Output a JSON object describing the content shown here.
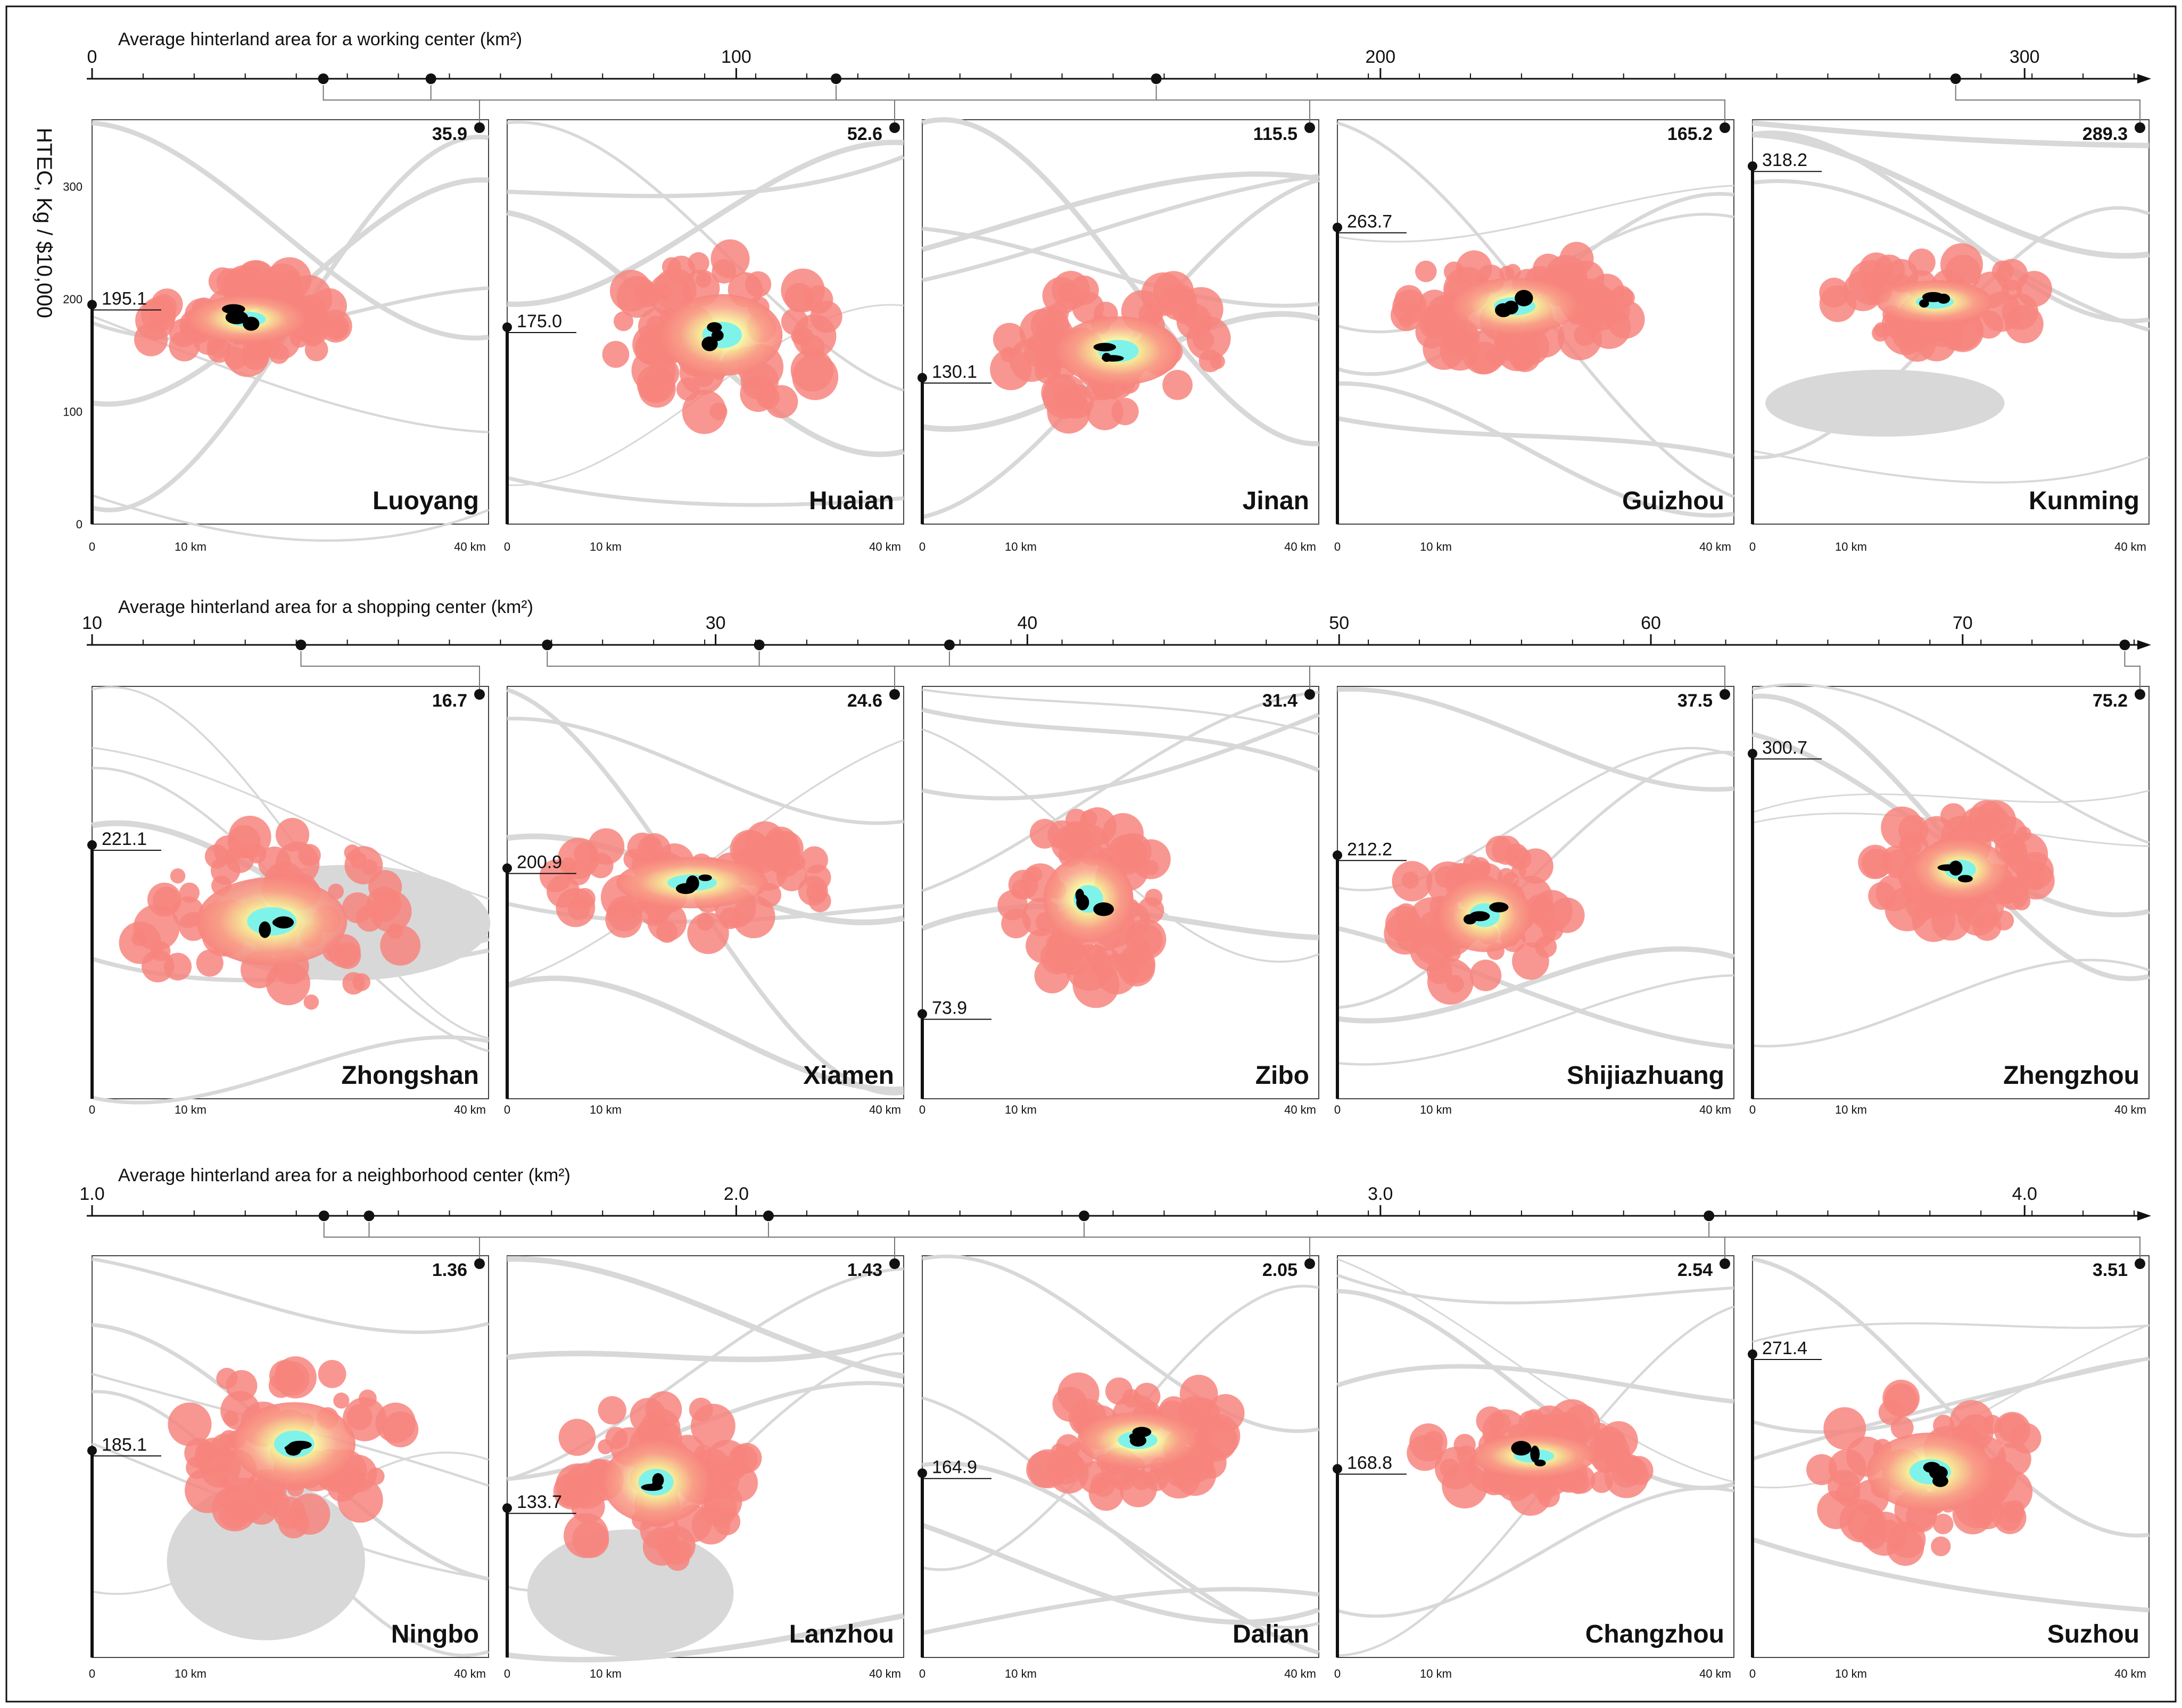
{
  "figure": {
    "ylabel": "HTEC, Kg / $10,000",
    "y_ticks": [
      "0",
      "100",
      "200",
      "300"
    ],
    "map_scale": {
      "start": "0",
      "mid": "10 km",
      "end": "40 km"
    },
    "colors": {
      "heat_low": "#f7857e",
      "heat_mid": "#f6f49a",
      "heat_high": "#7ff3ea",
      "core": "#000000",
      "base_map": "#d8d8d8",
      "line": "#111111"
    }
  },
  "rows": [
    {
      "axis_title": "Average hinterland area for a working center (km²)",
      "axis_ticks": [
        "0",
        "100",
        "200",
        "300"
      ],
      "tick_values": [
        0,
        100,
        200,
        300
      ],
      "axis_range": [
        0,
        317
      ],
      "panels": [
        {
          "city": "Luoyang",
          "hinterland": "35.9",
          "htec": "195.1",
          "htec_value": 195.1,
          "hinterland_value": 35.9
        },
        {
          "city": "Huaian",
          "hinterland": "52.6",
          "htec": "175.0",
          "htec_value": 175.0,
          "hinterland_value": 52.6
        },
        {
          "city": "Jinan",
          "hinterland": "115.5",
          "htec": "130.1",
          "htec_value": 130.1,
          "hinterland_value": 115.5
        },
        {
          "city": "Guizhou",
          "hinterland": "165.2",
          "htec": "263.7",
          "htec_value": 263.7,
          "hinterland_value": 165.2
        },
        {
          "city": "Kunming",
          "hinterland": "289.3",
          "htec": "318.2",
          "htec_value": 318.2,
          "hinterland_value": 289.3
        }
      ]
    },
    {
      "axis_title": "Average hinterland area for a shopping center (km²)",
      "axis_ticks": [
        "10",
        "30",
        "40",
        "50",
        "60",
        "70"
      ],
      "tick_values": [
        10,
        30,
        40,
        50,
        60,
        70
      ],
      "axis_range": [
        10,
        75.5
      ],
      "panels": [
        {
          "city": "Zhongshan",
          "hinterland": "16.7",
          "htec": "221.1",
          "htec_value": 221.1,
          "hinterland_value": 16.7
        },
        {
          "city": "Xiamen",
          "hinterland": "24.6",
          "htec": "200.9",
          "htec_value": 200.9,
          "hinterland_value": 24.6
        },
        {
          "city": "Zibo",
          "hinterland": "31.4",
          "htec": "73.9",
          "htec_value": 73.9,
          "hinterland_value": 31.4
        },
        {
          "city": "Shijiazhuang",
          "hinterland": "37.5",
          "htec": "212.2",
          "htec_value": 212.2,
          "hinterland_value": 37.5
        },
        {
          "city": "Zhengzhou",
          "hinterland": "75.2",
          "htec": "300.7",
          "htec_value": 300.7,
          "hinterland_value": 75.2
        }
      ]
    },
    {
      "axis_title": "Average hinterland area for a neighborhood center (km²)",
      "axis_ticks": [
        "1.0",
        "2.0",
        "3.0",
        "4.0"
      ],
      "tick_values": [
        1.0,
        2.0,
        3.0,
        4.0
      ],
      "axis_range": [
        1.0,
        4.17
      ],
      "panels": [
        {
          "city": "Ningbo",
          "hinterland": "1.36",
          "htec": "185.1",
          "htec_value": 185.1,
          "hinterland_value": 1.36
        },
        {
          "city": "Lanzhou",
          "hinterland": "1.43",
          "htec": "133.7",
          "htec_value": 133.7,
          "hinterland_value": 1.43
        },
        {
          "city": "Dalian",
          "hinterland": "2.05",
          "htec": "164.9",
          "htec_value": 164.9,
          "hinterland_value": 2.05
        },
        {
          "city": "Changzhou",
          "hinterland": "2.54",
          "htec": "168.8",
          "htec_value": 168.8,
          "hinterland_value": 2.54
        },
        {
          "city": "Suzhou",
          "hinterland": "3.51",
          "htec": "271.4",
          "htec_value": 271.4,
          "hinterland_value": 3.51
        }
      ]
    }
  ]
}
